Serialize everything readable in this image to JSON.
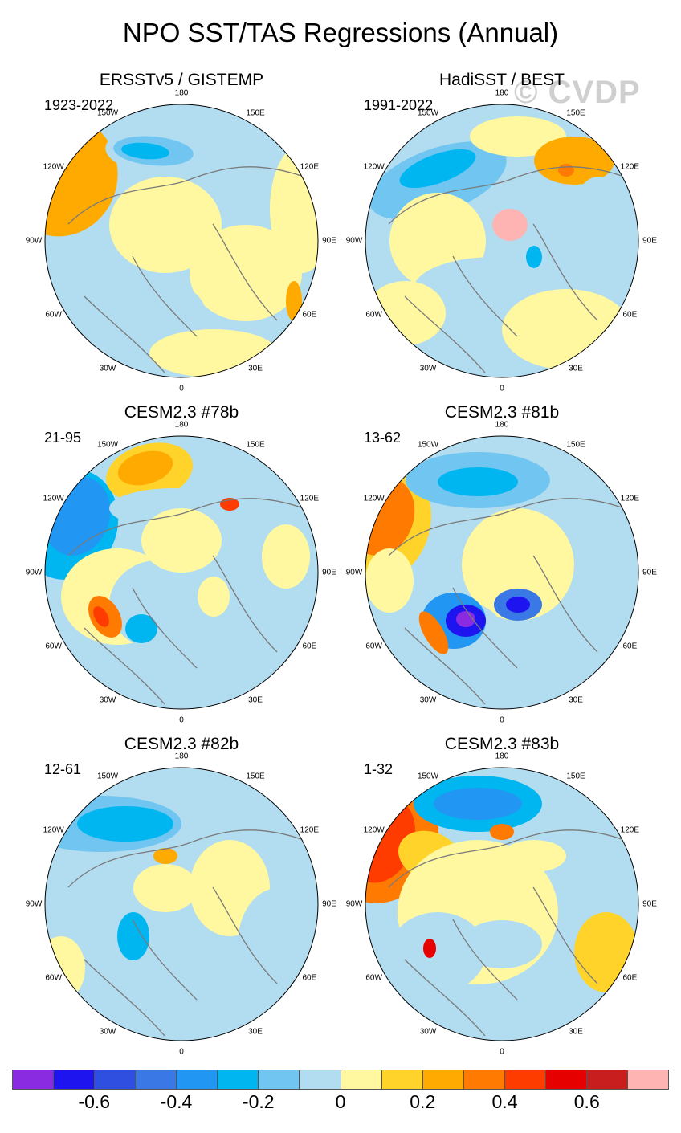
{
  "figure": {
    "title": "NPO SST/TAS Regressions (Annual)",
    "watermark": "© CVDP"
  },
  "panels": [
    {
      "title": "ERSSTv5 / GISTEMP",
      "period": "1923-2022"
    },
    {
      "title": "HadiSST / BEST",
      "period": "1991-2022"
    },
    {
      "title": "CESM2.3 #78b",
      "period": "21-95"
    },
    {
      "title": "CESM2.3 #81b",
      "period": "13-62"
    },
    {
      "title": "CESM2.3 #82b",
      "period": "12-61"
    },
    {
      "title": "CESM2.3 #83b",
      "period": "1-32"
    }
  ],
  "longitude_labels": [
    "180",
    "150E",
    "120E",
    "90E",
    "60E",
    "30E",
    "0",
    "30W",
    "60W",
    "90W",
    "120W",
    "150W"
  ],
  "colorbar": {
    "colors": [
      "#8a2be2",
      "#1e14f0",
      "#2f4fe0",
      "#3a78e6",
      "#2196f3",
      "#00b6f0",
      "#70c6f0",
      "#b2dcf0",
      "#fff8a0",
      "#ffd32a",
      "#ffaa00",
      "#ff7a00",
      "#ff3c00",
      "#e60000",
      "#c81e1e",
      "#ffb4b4"
    ],
    "ticks": [
      "-0.6",
      "-0.4",
      "-0.2",
      "0",
      "0.2",
      "0.4",
      "0.6"
    ]
  }
}
